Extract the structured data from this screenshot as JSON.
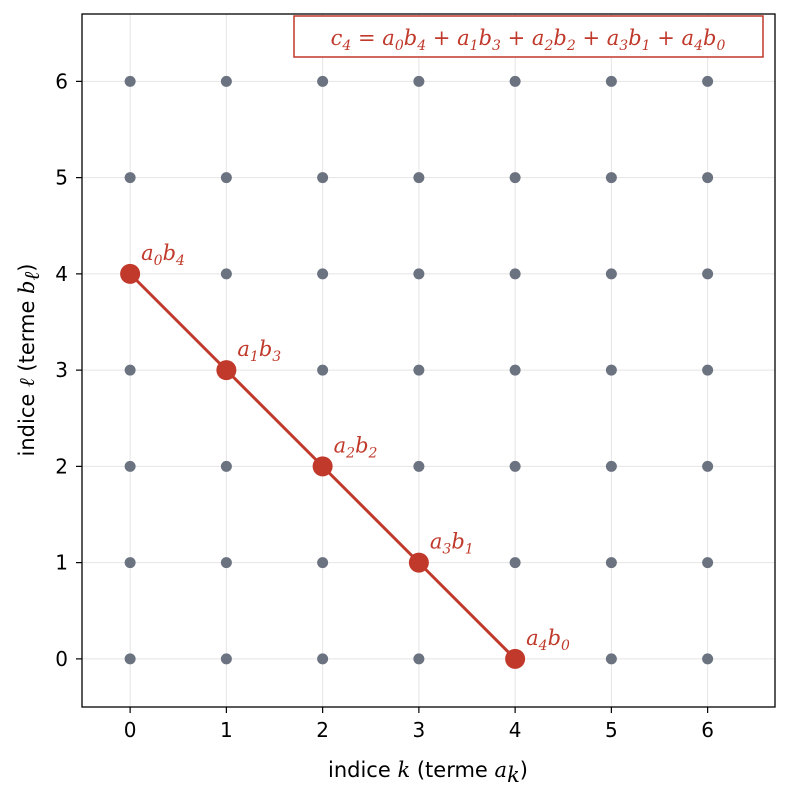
{
  "chart_data": {
    "type": "scatter",
    "xlabel_prefix": "indice ",
    "xlabel_var": "k",
    "xlabel_mid": " (terme ",
    "xlabel_term": "a",
    "xlabel_sub": "k",
    "xlabel_suffix": ")",
    "ylabel_prefix": "indice ",
    "ylabel_var": "ℓ",
    "ylabel_mid": " (terme ",
    "ylabel_term": "b",
    "ylabel_sub": "ℓ",
    "ylabel_suffix": ")",
    "xlim": [
      -0.5,
      6.7
    ],
    "ylim": [
      -0.5,
      6.7
    ],
    "xticks": [
      "0",
      "1",
      "2",
      "3",
      "4",
      "5",
      "6"
    ],
    "yticks": [
      "0",
      "1",
      "2",
      "3",
      "4",
      "5",
      "6"
    ],
    "grid": true,
    "grid_points": {
      "x": [
        0,
        1,
        2,
        3,
        4,
        5,
        6
      ],
      "y": [
        0,
        1,
        2,
        3,
        4,
        5,
        6
      ],
      "color": "#6b7280"
    },
    "highlight": {
      "color": "#c0392b",
      "points": [
        {
          "x": 0,
          "y": 4,
          "label": {
            "a": "0",
            "b": "4"
          }
        },
        {
          "x": 1,
          "y": 3,
          "label": {
            "a": "1",
            "b": "3"
          }
        },
        {
          "x": 2,
          "y": 2,
          "label": {
            "a": "2",
            "b": "2"
          }
        },
        {
          "x": 3,
          "y": 1,
          "label": {
            "a": "3",
            "b": "1"
          }
        },
        {
          "x": 4,
          "y": 0,
          "label": {
            "a": "4",
            "b": "0"
          }
        }
      ]
    },
    "formula": "c4 = a0b4 + a1b3 + a2b2 + a3b1 + a4b0"
  }
}
